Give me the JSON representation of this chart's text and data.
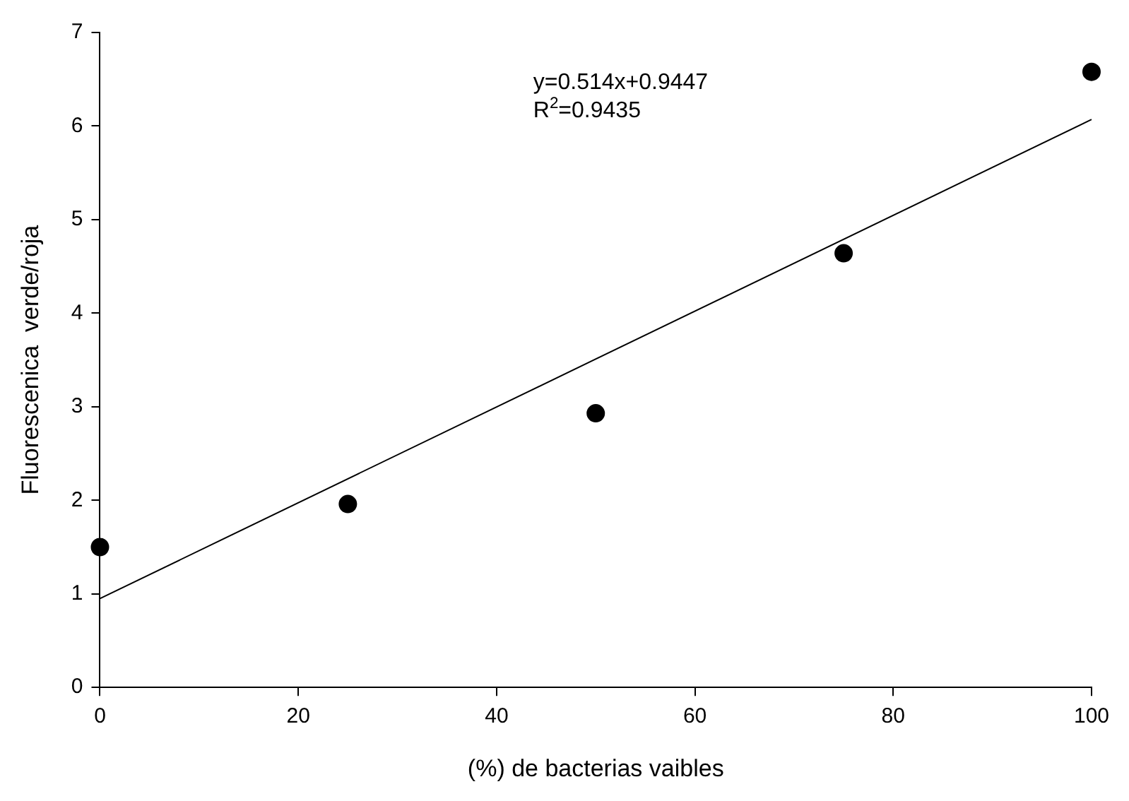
{
  "chart_data": {
    "type": "scatter",
    "xlabel": "(%) de bacterias vaibles",
    "ylabel": "Fluorescenica  verde/roja",
    "x": [
      0,
      25,
      50,
      75,
      100
    ],
    "series": [
      {
        "type": "scatter",
        "color": "#000000",
        "marker": "circle",
        "values": [
          1.5,
          1.96,
          2.93,
          4.64,
          6.58
        ]
      },
      {
        "type": "line",
        "color": "#000000",
        "marker": "none",
        "line_style": "solid",
        "x": [
          0,
          100
        ],
        "values": [
          0.95,
          6.07
        ]
      }
    ],
    "xlim": [
      0,
      100
    ],
    "xticks": [
      0,
      20,
      40,
      60,
      80,
      100
    ],
    "ylim": [
      0,
      7
    ],
    "yticks": [
      0,
      1,
      2,
      3,
      4,
      5,
      6,
      7
    ],
    "annotations": [
      "y=0.514x+0.9447",
      "R$^{2}$=0.9435"
    ],
    "grid": false,
    "legend": false
  }
}
